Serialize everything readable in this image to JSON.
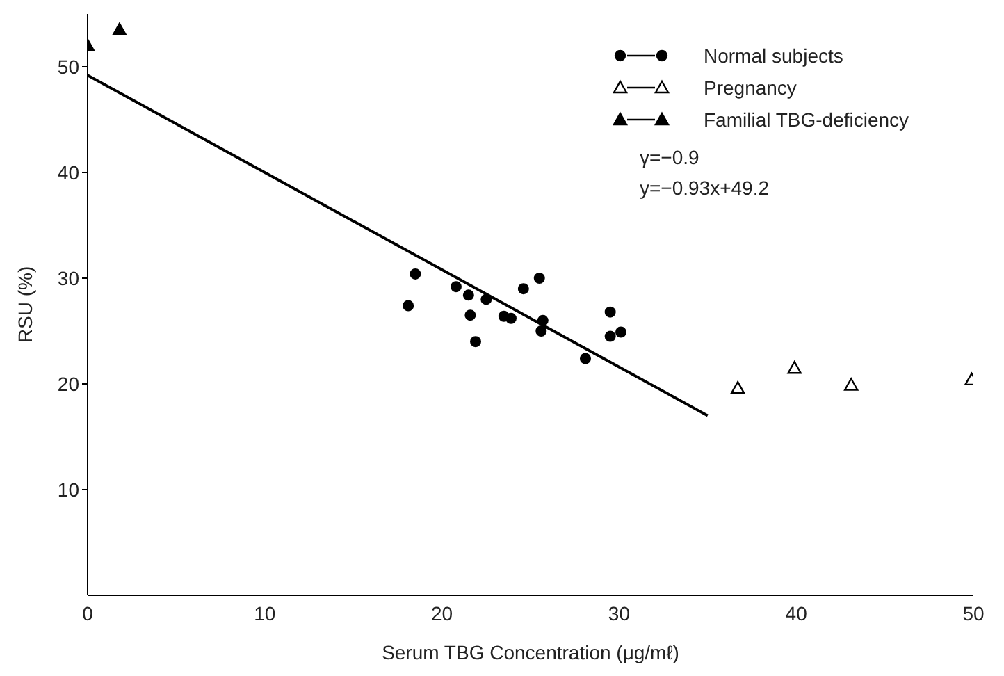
{
  "chart_data": {
    "type": "scatter",
    "xlabel": "Serum TBG Concentration (μg/mℓ)",
    "ylabel": "RSU (%)",
    "xlim": [
      0,
      50
    ],
    "ylim": [
      0,
      55
    ],
    "xticks": [
      0,
      10,
      20,
      30,
      40,
      50
    ],
    "yticks": [
      10,
      20,
      30,
      40,
      50
    ],
    "grid": false,
    "legend": "top right",
    "annotations": [
      "γ=−0.9",
      "y=−0.93x+49.2"
    ],
    "series": [
      {
        "name": "Normal subjects",
        "color": "#000000",
        "marker": "circle",
        "x": [
          18.5,
          18.1,
          20.8,
          21.5,
          22.5,
          21.6,
          21.9,
          23.5,
          23.9,
          24.6,
          25.5,
          25.7,
          25.6,
          28.1,
          29.5,
          29.5,
          30.1
        ],
        "values": [
          30.4,
          27.4,
          29.2,
          28.4,
          28.0,
          26.5,
          24.0,
          26.4,
          26.2,
          29.0,
          30.0,
          26.0,
          25.0,
          22.4,
          26.8,
          24.5,
          24.9
        ]
      },
      {
        "name": "Pregnancy",
        "color": "#ffffff",
        "marker": "triangle",
        "x": [
          36.7,
          39.9,
          43.1,
          49.9
        ],
        "values": [
          19.6,
          21.5,
          19.9,
          20.4
        ]
      },
      {
        "name": "Familial TBG-deficiency",
        "color": "#000000",
        "marker": "triangle",
        "x": [
          0,
          1.8
        ],
        "values": [
          52.0,
          53.5
        ]
      },
      {
        "type": "line",
        "color": "#000000",
        "marker": "none",
        "x": [
          0,
          35
        ],
        "values": [
          49.2,
          17
        ]
      }
    ]
  }
}
